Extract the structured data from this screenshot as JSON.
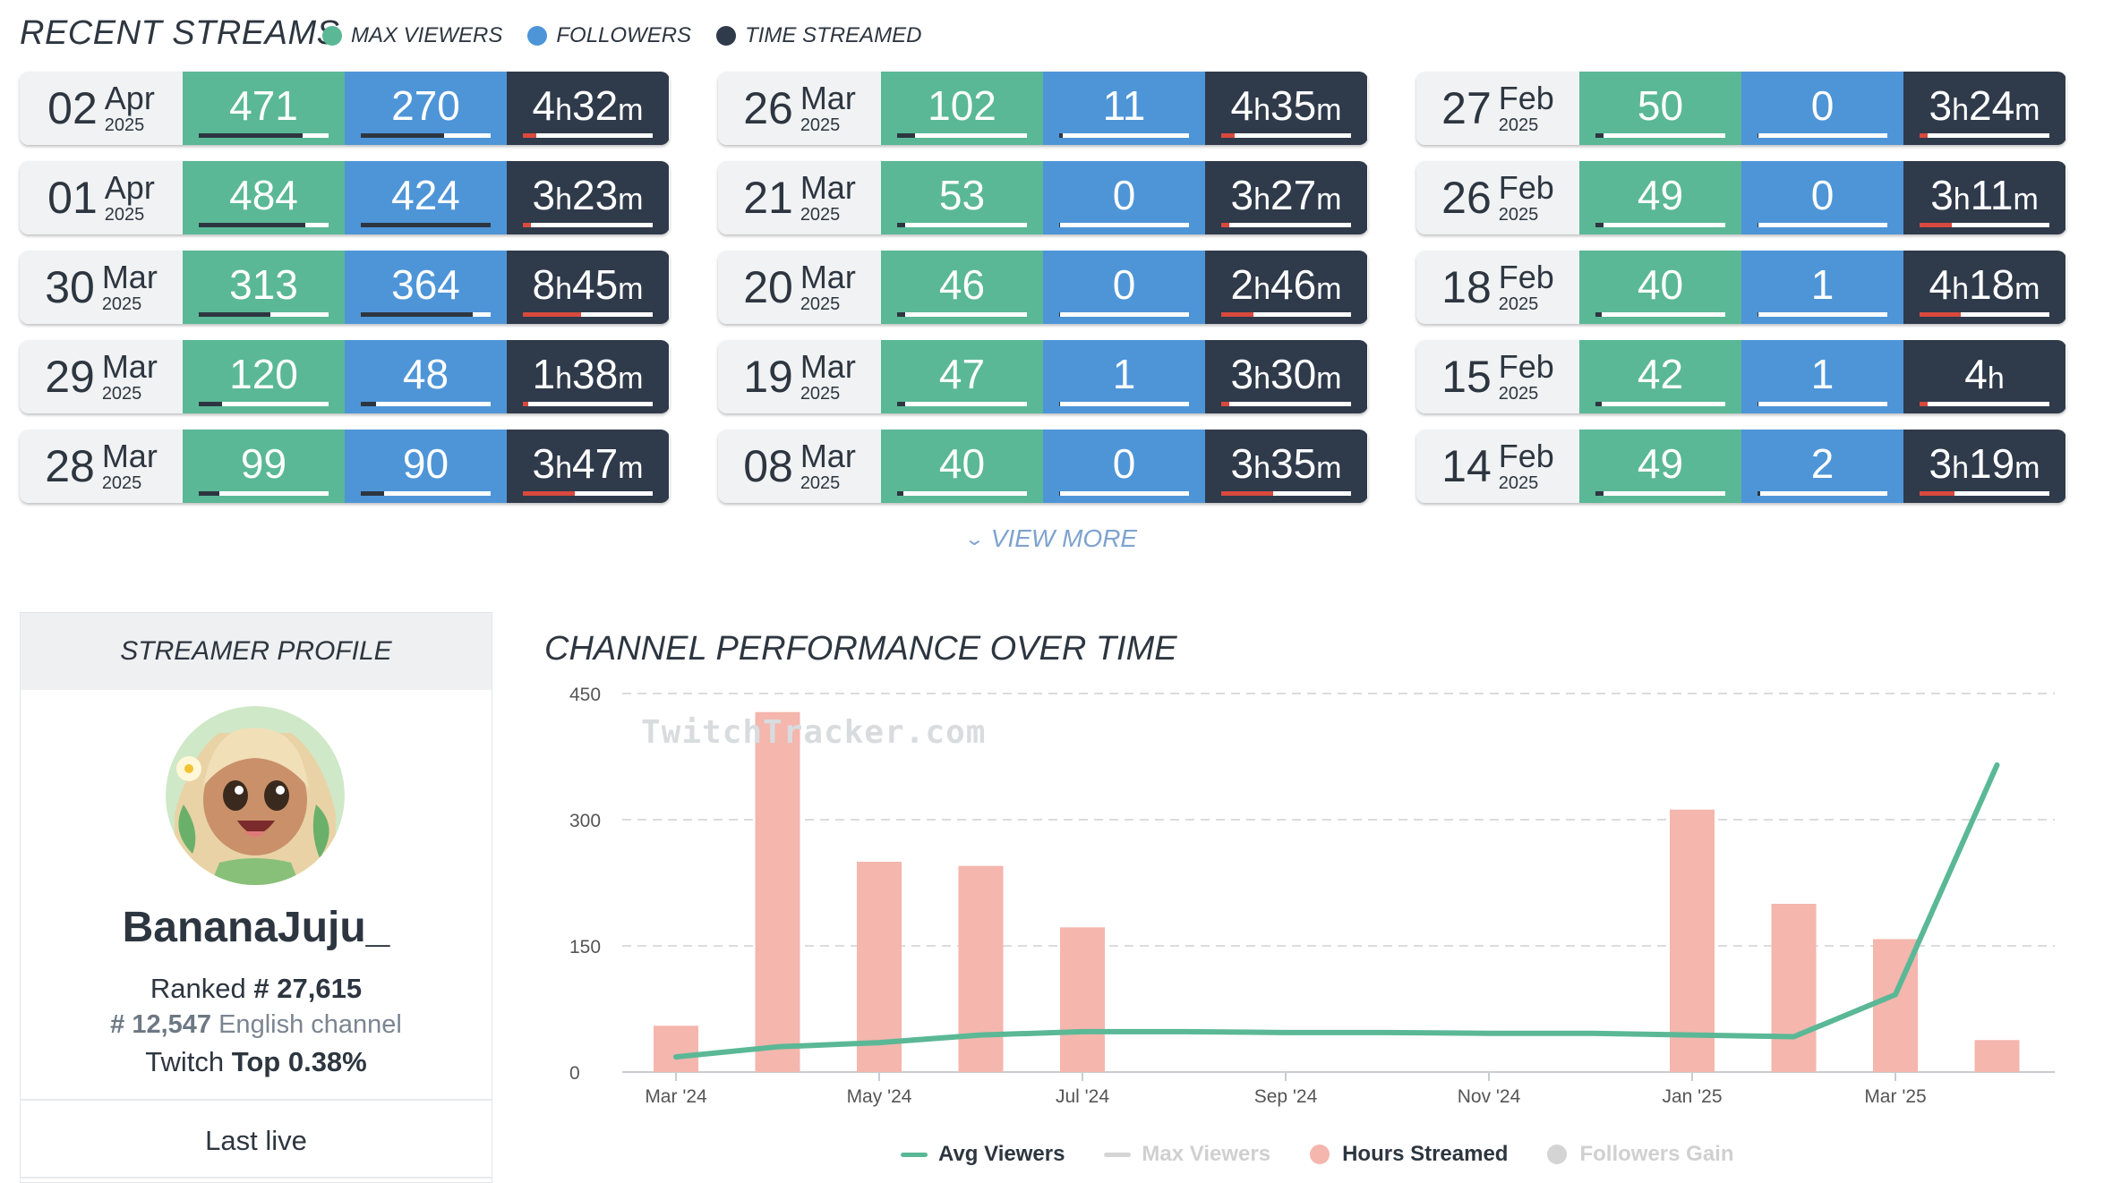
{
  "recent_streams": {
    "title": "RECENT STREAMS",
    "legend": [
      {
        "label": "MAX VIEWERS",
        "color": "#5ab896"
      },
      {
        "label": "FOLLOWERS",
        "color": "#4e95d8"
      },
      {
        "label": "TIME STREAMED",
        "color": "#2f3a4b"
      }
    ],
    "columns": [
      [
        {
          "day": "02",
          "month": "Apr",
          "year": "2025",
          "viewers": "471",
          "viewers_ratio": 0.8,
          "followers": "270",
          "followers_ratio": 0.64,
          "time_h": "4",
          "time_m": "32",
          "time_ratio": 0.1
        },
        {
          "day": "01",
          "month": "Apr",
          "year": "2025",
          "viewers": "484",
          "viewers_ratio": 0.82,
          "followers": "424",
          "followers_ratio": 1.0,
          "time_h": "3",
          "time_m": "23",
          "time_ratio": 0.06
        },
        {
          "day": "30",
          "month": "Mar",
          "year": "2025",
          "viewers": "313",
          "viewers_ratio": 0.55,
          "followers": "364",
          "followers_ratio": 0.86,
          "time_h": "8",
          "time_m": "45",
          "time_ratio": 0.45
        },
        {
          "day": "29",
          "month": "Mar",
          "year": "2025",
          "viewers": "120",
          "viewers_ratio": 0.18,
          "followers": "48",
          "followers_ratio": 0.12,
          "time_h": "1",
          "time_m": "38",
          "time_ratio": 0.04
        },
        {
          "day": "28",
          "month": "Mar",
          "year": "2025",
          "viewers": "99",
          "viewers_ratio": 0.16,
          "followers": "90",
          "followers_ratio": 0.18,
          "time_h": "3",
          "time_m": "47",
          "time_ratio": 0.4
        }
      ],
      [
        {
          "day": "26",
          "month": "Mar",
          "year": "2025",
          "viewers": "102",
          "viewers_ratio": 0.14,
          "followers": "11",
          "followers_ratio": 0.03,
          "time_h": "4",
          "time_m": "35",
          "time_ratio": 0.1
        },
        {
          "day": "21",
          "month": "Mar",
          "year": "2025",
          "viewers": "53",
          "viewers_ratio": 0.06,
          "followers": "0",
          "followers_ratio": 0.0,
          "time_h": "3",
          "time_m": "27",
          "time_ratio": 0.06
        },
        {
          "day": "20",
          "month": "Mar",
          "year": "2025",
          "viewers": "46",
          "viewers_ratio": 0.06,
          "followers": "0",
          "followers_ratio": 0.0,
          "time_h": "2",
          "time_m": "46",
          "time_ratio": 0.25
        },
        {
          "day": "19",
          "month": "Mar",
          "year": "2025",
          "viewers": "47",
          "viewers_ratio": 0.06,
          "followers": "1",
          "followers_ratio": 0.01,
          "time_h": "3",
          "time_m": "30",
          "time_ratio": 0.06
        },
        {
          "day": "08",
          "month": "Mar",
          "year": "2025",
          "viewers": "40",
          "viewers_ratio": 0.05,
          "followers": "0",
          "followers_ratio": 0.0,
          "time_h": "3",
          "time_m": "35",
          "time_ratio": 0.4
        }
      ],
      [
        {
          "day": "27",
          "month": "Feb",
          "year": "2025",
          "viewers": "50",
          "viewers_ratio": 0.06,
          "followers": "0",
          "followers_ratio": 0.0,
          "time_h": "3",
          "time_m": "24",
          "time_ratio": 0.06
        },
        {
          "day": "26",
          "month": "Feb",
          "year": "2025",
          "viewers": "49",
          "viewers_ratio": 0.06,
          "followers": "0",
          "followers_ratio": 0.0,
          "time_h": "3",
          "time_m": "11",
          "time_ratio": 0.25
        },
        {
          "day": "18",
          "month": "Feb",
          "year": "2025",
          "viewers": "40",
          "viewers_ratio": 0.05,
          "followers": "1",
          "followers_ratio": 0.01,
          "time_h": "4",
          "time_m": "18",
          "time_ratio": 0.32
        },
        {
          "day": "15",
          "month": "Feb",
          "year": "2025",
          "viewers": "42",
          "viewers_ratio": 0.05,
          "followers": "1",
          "followers_ratio": 0.01,
          "time_h": "4",
          "time_m": "",
          "time_ratio": 0.06
        },
        {
          "day": "14",
          "month": "Feb",
          "year": "2025",
          "viewers": "49",
          "viewers_ratio": 0.06,
          "followers": "2",
          "followers_ratio": 0.02,
          "time_h": "3",
          "time_m": "19",
          "time_ratio": 0.27
        }
      ]
    ],
    "view_more": "VIEW MORE"
  },
  "profile": {
    "header": "STREAMER PROFILE",
    "name": "BananaJuju_",
    "ranked_label": "Ranked",
    "rank": "# 27,615",
    "lang_rank": "# 12,547",
    "lang_label": "English channel",
    "twitch_label": "Twitch",
    "top": "Top 0.38%",
    "last_live": "Last live"
  },
  "chart_title": "CHANNEL PERFORMANCE OVER TIME",
  "watermark": "TwitchTracker.com",
  "chart_data": {
    "type": "bar+line",
    "title": "CHANNEL PERFORMANCE OVER TIME",
    "ylim": [
      0,
      450
    ],
    "yticks": [
      "0",
      "150",
      "300",
      "450"
    ],
    "xticks": [
      {
        "label": "Mar '24",
        "x": 0
      },
      {
        "label": "May '24",
        "x": 2
      },
      {
        "label": "Jul '24",
        "x": 4
      },
      {
        "label": "Sep '24",
        "x": 6
      },
      {
        "label": "Nov '24",
        "x": 8
      },
      {
        "label": "Jan '25",
        "x": 10
      },
      {
        "label": "Mar '25",
        "x": 12
      }
    ],
    "series": [
      {
        "name": "Hours Streamed",
        "kind": "bar",
        "color": "#f4b6ad",
        "x": [
          0,
          1,
          2,
          3,
          4,
          10,
          11,
          12,
          13
        ],
        "values": [
          55,
          428,
          250,
          245,
          172,
          312,
          200,
          158,
          38
        ]
      },
      {
        "name": "Avg Viewers",
        "kind": "line",
        "color": "#5ab896",
        "x": [
          0,
          1,
          2,
          3,
          4,
          5,
          6,
          7,
          8,
          9,
          10,
          11,
          12,
          13
        ],
        "values": [
          18,
          30,
          35,
          44,
          48,
          48,
          47,
          47,
          46,
          46,
          44,
          42,
          92,
          365
        ]
      },
      {
        "name": "Max Viewers",
        "kind": "line",
        "color": "#d4d4d4",
        "hidden": true,
        "values": []
      },
      {
        "name": "Followers Gain",
        "kind": "bar",
        "color": "#d4d4d4",
        "hidden": true,
        "values": []
      }
    ],
    "legend": [
      {
        "label": "Avg Viewers",
        "color": "#5ab896",
        "active": true,
        "marker": "line"
      },
      {
        "label": "Max Viewers",
        "color": "#d4d4d4",
        "active": false,
        "marker": "line"
      },
      {
        "label": "Hours Streamed",
        "color": "#f4b6ad",
        "active": true,
        "marker": "circle"
      },
      {
        "label": "Followers Gain",
        "color": "#d4d4d4",
        "active": false,
        "marker": "circle"
      }
    ]
  }
}
